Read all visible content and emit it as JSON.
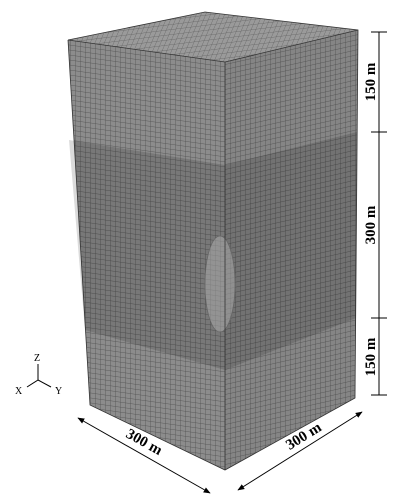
{
  "dimensions": {
    "vertical": [
      "150 m",
      "300 m",
      "150 m"
    ],
    "horizontal": [
      "300 m",
      "300 m"
    ]
  },
  "axes": {
    "z": "Z",
    "x": "X",
    "y": "Y"
  }
}
